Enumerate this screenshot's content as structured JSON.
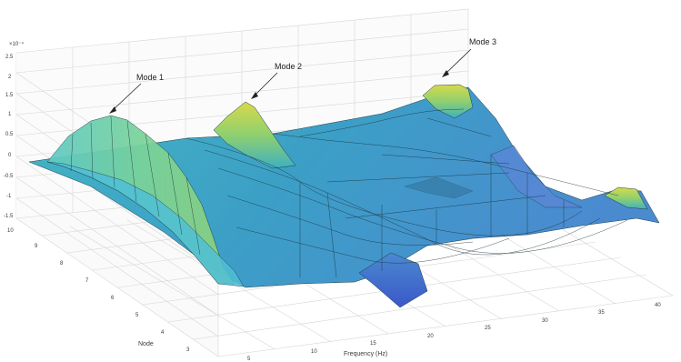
{
  "chart_data": {
    "type": "surface",
    "title": "",
    "xlabel": "Frequency (Hz)",
    "ylabel": "Node",
    "zlabel": "",
    "z_exponent_label": "×10⁻⁴",
    "x_ticks": [
      "5",
      "10",
      "15",
      "20",
      "25",
      "30",
      "35",
      "40"
    ],
    "y_ticks": [
      "3",
      "4",
      "5",
      "6",
      "7",
      "8",
      "9",
      "10"
    ],
    "z_ticks": [
      "-1.5",
      "-1",
      "-0.5",
      "0",
      "0.5",
      "1",
      "1.5",
      "2",
      "2.5"
    ],
    "xlim": [
      5,
      40
    ],
    "ylim": [
      2,
      10
    ],
    "zlim": [
      -1.5,
      2.5
    ],
    "grid": true,
    "colormap": [
      "#3b57c9",
      "#3aa0d4",
      "#4fc2b8",
      "#8fd06f",
      "#d8d94a"
    ],
    "annotations": [
      {
        "text": "Mode 1",
        "x_hz": 8,
        "node": 6,
        "z": 1.1
      },
      {
        "text": "Mode 2",
        "x_hz": 15,
        "node": 6,
        "z": 1.3
      },
      {
        "text": "Mode 3",
        "x_hz": 28,
        "node": 6,
        "z": 1.6
      }
    ],
    "mode_peaks": [
      {
        "name": "Mode 1",
        "freq_hz": 8,
        "amplitude": 1.1
      },
      {
        "name": "Mode 2",
        "freq_hz": 15,
        "amplitude": 1.3
      },
      {
        "name": "Mode 3",
        "freq_hz": 28,
        "amplitude": 1.6
      }
    ]
  }
}
